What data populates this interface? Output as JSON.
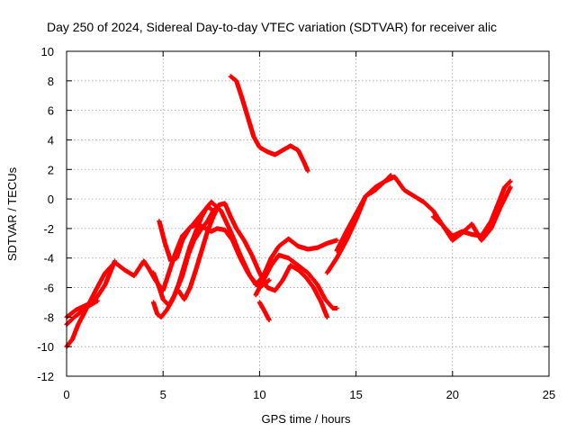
{
  "chart_data": {
    "type": "scatter",
    "title": "Day 250 of 2024, Sidereal Day-to-day VTEC variation (SDTVAR) for receiver alic",
    "xlabel": "GPS time / hours",
    "ylabel": "SDTVAR / TECUs",
    "xlim": [
      0,
      25
    ],
    "ylim": [
      -12,
      10
    ],
    "xticks": [
      0,
      5,
      10,
      15,
      20,
      25
    ],
    "yticks": [
      -12,
      -10,
      -8,
      -6,
      -4,
      -2,
      0,
      2,
      4,
      6,
      8,
      10
    ],
    "grid": true,
    "marker": "+",
    "color": "#ff0000",
    "series": [
      {
        "x": [
          0.0,
          0.3,
          0.6,
          1.0,
          1.5,
          2.0,
          2.5,
          3.0,
          3.5,
          4.0,
          4.3,
          4.6,
          5.0,
          5.3,
          5.6,
          6.0,
          6.5,
          7.0,
          7.5,
          8.0,
          8.5,
          9.0,
          9.5,
          10.0,
          10.5
        ],
        "y": [
          -10.0,
          -9.5,
          -8.5,
          -7.5,
          -6.2,
          -5.0,
          -4.3,
          -4.8,
          -5.2,
          -4.2,
          -4.8,
          -5.5,
          -6.2,
          -5.0,
          -3.8,
          -2.5,
          -1.8,
          -1.0,
          -0.2,
          -0.8,
          -2.2,
          -3.8,
          -5.2,
          -6.0,
          -5.5
        ]
      },
      {
        "x": [
          0.0,
          0.5,
          1.0,
          1.5,
          2.0,
          2.5
        ],
        "y": [
          -8.0,
          -7.5,
          -7.2,
          -6.8,
          -5.8,
          -4.2
        ]
      },
      {
        "x": [
          0.0,
          0.4,
          0.8,
          1.2,
          1.6
        ],
        "y": [
          -8.5,
          -8.0,
          -7.6,
          -7.2,
          -6.9
        ]
      },
      {
        "x": [
          4.8,
          5.1,
          5.4,
          5.7,
          6.0,
          6.4,
          6.8,
          7.2,
          7.5,
          7.8,
          8.2,
          8.6,
          9.0,
          9.4,
          9.8,
          10.2,
          10.6,
          11.0,
          11.5,
          12.0,
          12.5,
          13.0,
          13.5,
          14.0
        ],
        "y": [
          -1.5,
          -3.0,
          -4.2,
          -4.0,
          -2.8,
          -1.9,
          -1.7,
          -2.0,
          -2.2,
          -2.0,
          -2.1,
          -2.8,
          -4.0,
          -5.0,
          -5.8,
          -5.2,
          -4.0,
          -3.2,
          -2.7,
          -3.2,
          -3.4,
          -3.3,
          -3.0,
          -2.8
        ]
      },
      {
        "x": [
          4.5,
          4.8,
          5.0,
          5.3,
          5.6,
          6.0,
          6.3,
          6.6,
          7.0,
          7.3,
          7.6
        ],
        "y": [
          -5.0,
          -6.0,
          -6.8,
          -7.2,
          -6.5,
          -5.2,
          -3.8,
          -2.8,
          -2.0,
          -1.5,
          -0.8
        ]
      },
      {
        "x": [
          4.5,
          4.7,
          4.9,
          5.2,
          5.5,
          5.8,
          6.1,
          6.4,
          6.7,
          7.0,
          7.3,
          7.6,
          7.9
        ],
        "y": [
          -7.0,
          -7.8,
          -8.0,
          -7.5,
          -6.8,
          -5.8,
          -4.5,
          -3.2,
          -2.2,
          -1.2,
          -0.5,
          -0.8,
          -0.4
        ]
      },
      {
        "x": [
          5.8,
          6.1,
          6.4,
          6.7,
          7.0,
          7.3,
          7.6,
          7.9,
          8.2,
          8.5,
          8.8,
          9.2,
          9.6,
          10.0,
          10.4,
          10.8,
          11.2,
          11.6,
          12.0,
          12.4,
          12.8,
          13.2,
          13.5
        ],
        "y": [
          -6.2,
          -6.8,
          -6.0,
          -4.8,
          -3.5,
          -2.2,
          -1.2,
          -0.4,
          -0.3,
          -1.2,
          -2.0,
          -2.8,
          -3.8,
          -5.0,
          -6.0,
          -6.2,
          -5.5,
          -4.5,
          -4.8,
          -5.3,
          -6.0,
          -7.0,
          -8.0
        ]
      },
      {
        "x": [
          10.0,
          10.3,
          10.5
        ],
        "y": [
          -7.0,
          -7.7,
          -8.2
        ]
      },
      {
        "x": [
          9.8,
          10.2,
          10.6,
          11.0,
          11.5,
          12.0,
          12.5,
          13.0,
          13.4,
          13.8,
          14.0
        ],
        "y": [
          -6.5,
          -5.5,
          -4.5,
          -3.8,
          -4.0,
          -4.5,
          -5.0,
          -5.8,
          -6.8,
          -7.4,
          -7.4
        ]
      },
      {
        "x": [
          8.5,
          8.8,
          9.1,
          9.4,
          9.7,
          10.0,
          10.4,
          10.8,
          11.2,
          11.6,
          12.0,
          12.3,
          12.5
        ],
        "y": [
          8.3,
          8.0,
          6.8,
          5.5,
          4.2,
          3.5,
          3.2,
          3.0,
          3.3,
          3.6,
          3.3,
          2.5,
          1.9
        ]
      },
      {
        "x": [
          13.5,
          14.0,
          14.5,
          15.0,
          15.5,
          16.0,
          16.5,
          17.0,
          17.5,
          18.0,
          18.5,
          19.0,
          19.5,
          20.0,
          20.5,
          21.0,
          21.5,
          22.0,
          22.4,
          22.7,
          23.0
        ],
        "y": [
          -5.0,
          -4.0,
          -2.8,
          -1.4,
          0.2,
          0.8,
          1.2,
          1.5,
          0.6,
          0.2,
          -0.2,
          -0.8,
          -1.8,
          -2.5,
          -2.2,
          -2.4,
          -2.5,
          -1.5,
          -0.2,
          0.8,
          1.2
        ]
      },
      {
        "x": [
          14.0,
          14.5,
          15.0,
          15.5,
          16.0,
          16.5,
          16.8
        ],
        "y": [
          -3.5,
          -2.2,
          -1.0,
          0.2,
          0.6,
          1.2,
          1.6
        ]
      },
      {
        "x": [
          19.0,
          19.5,
          20.0,
          20.5,
          21.0,
          21.5,
          22.0,
          22.5,
          23.0
        ],
        "y": [
          -1.2,
          -1.8,
          -2.8,
          -2.3,
          -1.7,
          -2.8,
          -2.0,
          -0.5,
          0.8
        ]
      }
    ]
  }
}
